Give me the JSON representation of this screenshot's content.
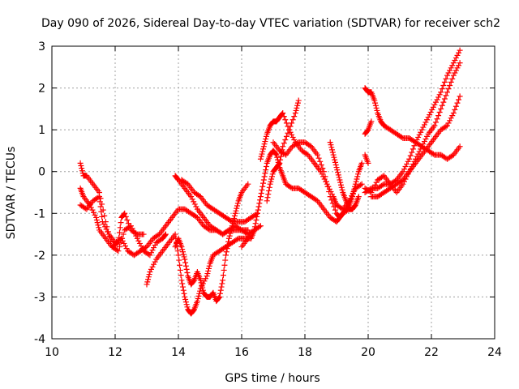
{
  "chart_data": {
    "type": "scatter",
    "title": "Day 090 of 2026, Sidereal Day-to-day VTEC variation (SDTVAR) for receiver sch2",
    "xlabel": "GPS time / hours",
    "ylabel": "SDTVAR / TECUs",
    "xlim": [
      10,
      24
    ],
    "ylim": [
      -4,
      3
    ],
    "xticks": [
      10,
      12,
      14,
      16,
      18,
      20,
      22,
      24
    ],
    "yticks": [
      -4,
      -3,
      -2,
      -1,
      0,
      1,
      2,
      3
    ],
    "xtick_labels": [
      "10",
      "12",
      "14",
      "16",
      "18",
      "20",
      "22",
      "24"
    ],
    "ytick_labels": [
      "-4",
      "-3",
      "-2",
      "-1",
      "0",
      "1",
      "2",
      "3"
    ],
    "grid": true,
    "marker": "plus",
    "color": "#ff0000",
    "series": [
      {
        "x": [
          10.9,
          11.0,
          11.1,
          11.3,
          11.5,
          11.7,
          11.9,
          12.1,
          12.3,
          12.5,
          12.7,
          12.9,
          13.1,
          13.3,
          13.5,
          13.6
        ],
        "y": [
          0.2,
          -0.1,
          -0.1,
          -0.3,
          -0.5,
          -1.2,
          -1.8,
          -1.9,
          -1.4,
          -1.3,
          -1.6,
          -1.9,
          -2.0,
          -1.7,
          -1.6,
          -1.5
        ]
      },
      {
        "x": [
          10.9,
          11.0,
          11.2,
          11.4,
          11.5,
          11.7,
          11.9,
          12.1,
          12.2,
          12.3,
          12.5,
          12.7,
          12.9
        ],
        "y": [
          -0.4,
          -0.6,
          -0.8,
          -1.1,
          -1.4,
          -1.6,
          -1.8,
          -1.7,
          -1.1,
          -1.0,
          -1.4,
          -1.5,
          -1.5
        ]
      },
      {
        "x": [
          10.9,
          11.1,
          11.3,
          11.5,
          11.6,
          11.8,
          12.0,
          12.2,
          12.4,
          12.6,
          12.8,
          13.0,
          13.2,
          13.4,
          13.6,
          13.8,
          14.0,
          14.2,
          14.4,
          14.6,
          14.8,
          15.0,
          15.2,
          15.4,
          15.6,
          15.8,
          16.0,
          16.2
        ],
        "y": [
          -0.8,
          -0.9,
          -0.7,
          -0.6,
          -1.2,
          -1.5,
          -1.7,
          -1.6,
          -1.9,
          -2.0,
          -1.9,
          -1.8,
          -1.6,
          -1.5,
          -1.3,
          -1.1,
          -0.9,
          -0.9,
          -1.0,
          -1.1,
          -1.3,
          -1.4,
          -1.4,
          -1.5,
          -1.4,
          -1.4,
          -1.4,
          -1.4
        ]
      },
      {
        "x": [
          13.0,
          13.1,
          13.3,
          13.5,
          13.7,
          13.9,
          14.0,
          14.1,
          14.2,
          14.3,
          14.4,
          14.5,
          14.6,
          14.7,
          14.9,
          15.0,
          15.1,
          15.3,
          15.5,
          15.7,
          15.9,
          16.1,
          16.3,
          16.4
        ],
        "y": [
          -2.7,
          -2.4,
          -2.1,
          -1.9,
          -1.7,
          -1.5,
          -2.0,
          -2.6,
          -3.0,
          -3.3,
          -3.4,
          -3.3,
          -3.1,
          -2.8,
          -2.5,
          -2.2,
          -2.0,
          -1.9,
          -1.8,
          -1.7,
          -1.6,
          -1.6,
          -1.6,
          -1.4
        ]
      },
      {
        "x": [
          13.9,
          14.0,
          14.1,
          14.2,
          14.3,
          14.4,
          14.5,
          14.6,
          14.7,
          14.8,
          14.9,
          15.0,
          15.1,
          15.2,
          15.3,
          15.4,
          15.5,
          15.6,
          15.7,
          15.8,
          15.9,
          16.0,
          16.2
        ],
        "y": [
          -1.8,
          -1.6,
          -1.8,
          -2.1,
          -2.5,
          -2.7,
          -2.6,
          -2.4,
          -2.6,
          -2.9,
          -3.0,
          -3.0,
          -2.9,
          -3.1,
          -3.0,
          -2.6,
          -2.0,
          -1.6,
          -1.3,
          -1.0,
          -0.7,
          -0.5,
          -0.3
        ]
      },
      {
        "x": [
          13.9,
          14.0,
          14.2,
          14.4,
          14.6,
          14.8,
          15.0,
          15.2,
          15.4,
          15.6,
          15.8,
          16.0,
          16.2,
          16.4,
          16.6
        ],
        "y": [
          -0.1,
          -0.2,
          -0.4,
          -0.6,
          -0.9,
          -1.1,
          -1.3,
          -1.4,
          -1.5,
          -1.4,
          -1.3,
          -1.4,
          -1.5,
          -1.4,
          -1.3
        ]
      },
      {
        "x": [
          14.1,
          14.3,
          14.5,
          14.7,
          14.9,
          15.1,
          15.3,
          15.5,
          15.7,
          15.9,
          16.1,
          16.3,
          16.5
        ],
        "y": [
          -0.2,
          -0.3,
          -0.5,
          -0.6,
          -0.8,
          -0.9,
          -1.0,
          -1.1,
          -1.2,
          -1.2,
          -1.2,
          -1.1,
          -1.0
        ]
      },
      {
        "x": [
          16.0,
          16.2,
          16.4,
          16.5,
          16.6,
          16.7,
          16.8,
          16.9,
          17.0,
          17.1,
          17.2,
          17.3,
          17.4,
          17.6,
          17.8,
          18.0,
          18.2,
          18.4,
          18.6,
          18.8,
          19.0,
          19.1,
          19.2,
          19.4
        ],
        "y": [
          -1.8,
          -1.6,
          -1.4,
          -1.0,
          -0.6,
          -0.2,
          0.2,
          0.4,
          0.5,
          0.4,
          0.1,
          -0.1,
          -0.3,
          -0.4,
          -0.4,
          -0.5,
          -0.6,
          -0.7,
          -0.9,
          -1.1,
          -1.2,
          -1.1,
          -1.0,
          -0.9
        ]
      },
      {
        "x": [
          16.6,
          16.7,
          16.8,
          16.9,
          17.0,
          17.1,
          17.2,
          17.3,
          17.5,
          17.7,
          17.9,
          18.1,
          18.3,
          18.5,
          18.7,
          18.9,
          19.0,
          19.2,
          19.4,
          19.6,
          19.8
        ],
        "y": [
          0.3,
          0.6,
          0.9,
          1.1,
          1.2,
          1.2,
          1.3,
          1.4,
          1.0,
          0.7,
          0.5,
          0.4,
          0.2,
          0.0,
          -0.3,
          -0.6,
          -0.8,
          -0.9,
          -0.7,
          -0.4,
          -0.3
        ]
      },
      {
        "x": [
          17.0,
          17.2,
          17.4,
          17.6,
          17.8,
          18.0,
          18.2,
          18.4,
          18.6,
          18.8,
          19.0,
          19.1,
          19.2,
          19.3,
          19.4
        ],
        "y": [
          0.7,
          0.5,
          0.4,
          0.6,
          0.7,
          0.7,
          0.6,
          0.4,
          0.0,
          -0.6,
          -1.0,
          -1.1,
          -1.0,
          -0.9,
          -0.7
        ]
      },
      {
        "x": [
          16.8,
          16.9,
          17.0,
          17.1,
          17.2,
          17.3,
          17.5,
          17.7,
          17.8
        ],
        "y": [
          -0.7,
          -0.3,
          0.0,
          0.1,
          0.2,
          0.6,
          1.0,
          1.4,
          1.7
        ]
      },
      {
        "x": [
          18.8,
          18.9,
          19.0,
          19.1,
          19.2,
          19.3,
          19.4,
          19.5,
          19.6,
          19.7
        ],
        "y": [
          0.7,
          0.4,
          0.1,
          -0.2,
          -0.5,
          -0.7,
          -0.9,
          -0.9,
          -0.8,
          -0.6
        ]
      },
      {
        "x": [
          19.4,
          19.5,
          19.6,
          19.7,
          19.8
        ],
        "y": [
          -0.8,
          -0.6,
          -0.3,
          0.0,
          0.2
        ]
      },
      {
        "x": [
          19.9,
          20.0,
          20.1
        ],
        "y": [
          0.9,
          1.0,
          1.2
        ]
      },
      {
        "x": [
          19.9,
          20.0
        ],
        "y": [
          0.4,
          0.2
        ]
      },
      {
        "x": [
          19.9,
          20.0,
          20.1,
          20.2,
          20.3,
          20.4,
          20.5,
          20.7,
          20.9,
          21.1,
          21.3,
          21.5,
          21.7,
          21.9,
          22.1,
          22.3,
          22.5,
          22.7,
          22.9
        ],
        "y": [
          2.0,
          1.9,
          1.9,
          1.7,
          1.4,
          1.2,
          1.1,
          1.0,
          0.9,
          0.8,
          0.8,
          0.7,
          0.6,
          0.5,
          0.4,
          0.4,
          0.3,
          0.4,
          0.6
        ]
      },
      {
        "x": [
          19.9,
          20.1,
          20.3,
          20.5,
          20.7,
          20.9,
          21.1,
          21.3,
          21.5,
          21.7,
          21.9,
          22.1,
          22.3,
          22.5,
          22.7,
          22.9
        ],
        "y": [
          -0.5,
          -0.4,
          -0.4,
          -0.3,
          -0.3,
          -0.2,
          0.0,
          0.3,
          0.7,
          1.0,
          1.3,
          1.6,
          1.9,
          2.3,
          2.6,
          2.9
        ]
      },
      {
        "x": [
          19.9,
          20.1,
          20.3,
          20.5,
          20.7,
          20.9,
          21.1,
          21.3,
          21.5,
          21.7,
          21.9,
          22.1,
          22.3,
          22.5,
          22.7,
          22.9
        ],
        "y": [
          -0.4,
          -0.5,
          -0.2,
          -0.1,
          -0.3,
          -0.5,
          -0.3,
          0.0,
          0.3,
          0.6,
          0.9,
          1.1,
          1.5,
          1.9,
          2.3,
          2.6
        ]
      },
      {
        "x": [
          20.1,
          20.3,
          20.5,
          20.7,
          20.9,
          21.1,
          21.3,
          21.5,
          21.7,
          21.9,
          22.1,
          22.3,
          22.5,
          22.7,
          22.9
        ],
        "y": [
          -0.6,
          -0.6,
          -0.5,
          -0.4,
          -0.3,
          -0.2,
          0.0,
          0.2,
          0.4,
          0.6,
          0.8,
          1.0,
          1.1,
          1.4,
          1.8
        ]
      }
    ]
  }
}
